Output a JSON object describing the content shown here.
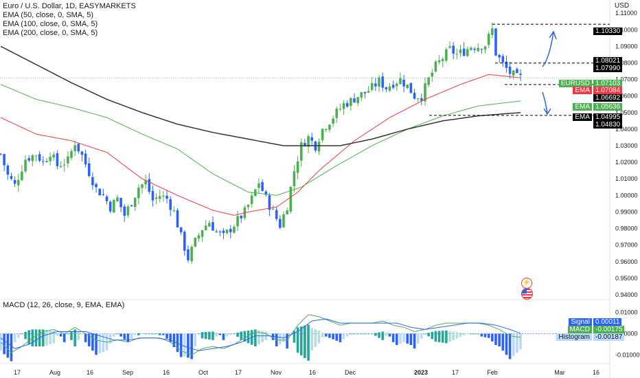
{
  "header": {
    "symbol_line": "Euro / U.S. Dollar, 1D, EASYMARKETS",
    "indicators": [
      "EMA (50, close, 0, SMA, 5)",
      "EMA (100, close, 0, SMA, 5)",
      "EMA (200, close, 0, SMA, 5)"
    ],
    "currency": "USD"
  },
  "macd_panel": {
    "title": "MACD (12, 26, close, 9, EMA, EMA)"
  },
  "price_tags": [
    {
      "label": "",
      "value": "1.10330",
      "bg": "#000000",
      "fg": "#ffffff"
    },
    {
      "label": "",
      "value": "1.08021",
      "bg": "#000000",
      "fg": "#ffffff"
    },
    {
      "label": "",
      "value": "1.07990",
      "bg": "#000000",
      "fg": "#ffffff"
    },
    {
      "label": "EURUSD",
      "value": "1.07103",
      "bg": "#4caf50",
      "fg": "#ffffff"
    },
    {
      "label": "EMA",
      "value": "1.07084",
      "bg": "#f23645",
      "fg": "#ffffff"
    },
    {
      "label": "",
      "value": "1.06692",
      "bg": "#000000",
      "fg": "#ffffff"
    },
    {
      "label": "EMA",
      "value": "1.05636",
      "bg": "#4caf50",
      "fg": "#ffffff"
    },
    {
      "label": "EMA",
      "value": "1.04995",
      "bg": "#000000",
      "fg": "#ffffff"
    },
    {
      "label": "",
      "value": "1.04830",
      "bg": "#000000",
      "fg": "#ffffff"
    }
  ],
  "macd_tags": [
    {
      "label": "Signal",
      "value": "0.00011",
      "bg": "#2962ff",
      "fg": "#ffffff"
    },
    {
      "label": "MACD",
      "value": "-0.00175",
      "bg": "#4caf50",
      "fg": "#ffffff"
    },
    {
      "label": "Histogram",
      "value": "-0.00187",
      "bg": "#bbd9fb",
      "fg": "#131722"
    }
  ],
  "colors": {
    "up": "#4caf50",
    "down": "#2962ff",
    "ema50": "#f23645",
    "ema100": "#4caf50",
    "ema200": "#333333",
    "arrow": "#2962ff",
    "macd_line": "#4caf50",
    "signal_line": "#2962ff"
  },
  "icons": [
    "lightning-icon",
    "us-flag-icon"
  ],
  "chart_data": [
    {
      "type": "candlestick",
      "title": "Euro / U.S. Dollar, 1D, EASYMARKETS",
      "ylabel": "USD",
      "y_ticks": [
        "1.11000",
        "1.10000",
        "1.09000",
        "1.08000",
        "1.07000",
        "1.06000",
        "1.05000",
        "1.04000",
        "1.03000",
        "1.02000",
        "1.01000",
        "1.00000",
        "0.99000",
        "0.98000",
        "0.97000",
        "0.96000",
        "0.95000",
        "0.94000"
      ],
      "x_ticks": [
        "17",
        "Aug",
        "16",
        "Sep",
        "16",
        "Oct",
        "17",
        "Nov",
        "16",
        "Dec",
        "2023",
        "17",
        "Feb",
        "Mar",
        "16"
      ],
      "ylim": [
        0.9375,
        1.1138
      ],
      "price_path": [
        [
          0,
          1.025
        ],
        [
          2,
          1.012
        ],
        [
          4,
          1.006
        ],
        [
          7,
          1.022
        ],
        [
          10,
          1.025
        ],
        [
          12,
          1.02
        ],
        [
          14,
          1.026
        ],
        [
          16,
          1.018
        ],
        [
          19,
          1.021
        ],
        [
          21,
          1.032
        ],
        [
          23,
          1.024
        ],
        [
          25,
          1.014
        ],
        [
          27,
          1.004
        ],
        [
          29,
          1.0
        ],
        [
          31,
          0.993
        ],
        [
          33,
          0.998
        ],
        [
          35,
          0.988
        ],
        [
          37,
          0.996
        ],
        [
          39,
          1.005
        ],
        [
          41,
          1.008
        ],
        [
          43,
          0.997
        ],
        [
          45,
          1.0
        ],
        [
          47,
          0.998
        ],
        [
          49,
          0.99
        ],
        [
          51,
          0.975
        ],
        [
          53,
          0.962
        ],
        [
          55,
          0.972
        ],
        [
          57,
          0.98
        ],
        [
          59,
          0.984
        ],
        [
          61,
          0.978
        ],
        [
          63,
          0.975
        ],
        [
          65,
          0.98
        ],
        [
          67,
          0.985
        ],
        [
          69,
          0.99
        ],
        [
          71,
          0.998
        ],
        [
          73,
          1.008
        ],
        [
          75,
          0.998
        ],
        [
          77,
          0.99
        ],
        [
          79,
          0.982
        ],
        [
          81,
          0.994
        ],
        [
          83,
          1.015
        ],
        [
          85,
          1.03
        ],
        [
          87,
          1.035
        ],
        [
          89,
          1.03
        ],
        [
          91,
          1.04
        ],
        [
          93,
          1.045
        ],
        [
          95,
          1.05
        ],
        [
          97,
          1.055
        ],
        [
          99,
          1.057
        ],
        [
          101,
          1.06
        ],
        [
          103,
          1.062
        ],
        [
          105,
          1.065
        ],
        [
          107,
          1.069
        ],
        [
          109,
          1.065
        ],
        [
          111,
          1.068
        ],
        [
          113,
          1.07
        ],
        [
          115,
          1.066
        ],
        [
          117,
          1.06
        ],
        [
          119,
          1.06
        ],
        [
          121,
          1.07
        ],
        [
          123,
          1.078
        ],
        [
          125,
          1.083
        ],
        [
          127,
          1.088
        ],
        [
          129,
          1.085
        ],
        [
          131,
          1.087
        ],
        [
          133,
          1.09
        ],
        [
          135,
          1.09
        ],
        [
          137,
          1.091
        ],
        [
          139,
          1.1
        ],
        [
          140,
          1.086
        ],
        [
          142,
          1.079
        ],
        [
          144,
          1.074
        ],
        [
          146,
          1.071
        ],
        [
          147,
          1.071
        ]
      ],
      "candles_count": 148,
      "series": [
        {
          "name": "EMA (50, close, 0, SMA, 5)",
          "last": 1.07084,
          "path": [
            [
              0,
              1.047
            ],
            [
              10,
              1.037
            ],
            [
              20,
              1.033
            ],
            [
              30,
              1.026
            ],
            [
              40,
              1.01
            ],
            [
              50,
              1.0
            ],
            [
              60,
              0.991
            ],
            [
              66,
              0.988
            ],
            [
              70,
              0.99
            ],
            [
              78,
              0.993
            ],
            [
              84,
              1.002
            ],
            [
              90,
              1.015
            ],
            [
              100,
              1.033
            ],
            [
              110,
              1.047
            ],
            [
              120,
              1.058
            ],
            [
              130,
              1.067
            ],
            [
              138,
              1.073
            ],
            [
              147,
              1.071
            ]
          ]
        },
        {
          "name": "EMA (100, close, 0, SMA, 5)",
          "last": 1.05636,
          "path": [
            [
              0,
              1.067
            ],
            [
              10,
              1.058
            ],
            [
              20,
              1.053
            ],
            [
              30,
              1.047
            ],
            [
              40,
              1.037
            ],
            [
              50,
              1.028
            ],
            [
              60,
              1.013
            ],
            [
              70,
              1.002
            ],
            [
              78,
              1.0
            ],
            [
              85,
              1.005
            ],
            [
              95,
              1.018
            ],
            [
              105,
              1.03
            ],
            [
              115,
              1.04
            ],
            [
              125,
              1.048
            ],
            [
              135,
              1.054
            ],
            [
              147,
              1.057
            ]
          ]
        },
        {
          "name": "EMA (200, close, 0, SMA, 5)",
          "last": 1.04995,
          "path": [
            [
              0,
              1.09
            ],
            [
              10,
              1.079
            ],
            [
              20,
              1.068
            ],
            [
              30,
              1.058
            ],
            [
              40,
              1.05
            ],
            [
              50,
              1.043
            ],
            [
              60,
              1.038
            ],
            [
              70,
              1.034
            ],
            [
              80,
              1.03
            ],
            [
              88,
              1.03
            ],
            [
              96,
              1.03
            ],
            [
              105,
              1.034
            ],
            [
              115,
              1.04
            ],
            [
              125,
              1.045
            ],
            [
              135,
              1.048
            ],
            [
              147,
              1.05
            ]
          ]
        }
      ],
      "levels": [
        1.1033,
        1.0799,
        1.0669,
        1.0483
      ]
    },
    {
      "type": "line",
      "title": "MACD (12, 26, close, 9, EMA, EMA)",
      "y_ticks": [
        "0.01000",
        "0.00000",
        "-0.01000"
      ],
      "ylim": [
        -0.0128,
        0.0125
      ],
      "series": [
        {
          "name": "MACD",
          "last": -0.00175,
          "path": [
            [
              0,
              -0.004
            ],
            [
              3,
              -0.009
            ],
            [
              6,
              -0.006
            ],
            [
              9,
              -0.002
            ],
            [
              12,
              0.001
            ],
            [
              15,
              0.002
            ],
            [
              18,
              0.0
            ],
            [
              21,
              0.003
            ],
            [
              24,
              0.0
            ],
            [
              27,
              -0.003
            ],
            [
              30,
              -0.004
            ],
            [
              33,
              -0.003
            ],
            [
              36,
              -0.004
            ],
            [
              39,
              -0.002
            ],
            [
              42,
              -0.002
            ],
            [
              45,
              -0.002
            ],
            [
              48,
              -0.004
            ],
            [
              51,
              -0.008
            ],
            [
              54,
              -0.01
            ],
            [
              57,
              -0.007
            ],
            [
              60,
              -0.006
            ],
            [
              63,
              -0.007
            ],
            [
              66,
              -0.005
            ],
            [
              69,
              -0.002
            ],
            [
              72,
              0.001
            ],
            [
              75,
              0.0
            ],
            [
              78,
              -0.003
            ],
            [
              81,
              -0.003
            ],
            [
              84,
              0.004
            ],
            [
              87,
              0.009
            ],
            [
              90,
              0.008
            ],
            [
              93,
              0.006
            ],
            [
              96,
              0.004
            ],
            [
              99,
              0.005
            ],
            [
              102,
              0.005
            ],
            [
              105,
              0.005
            ],
            [
              108,
              0.006
            ],
            [
              111,
              0.004
            ],
            [
              114,
              0.003
            ],
            [
              117,
              0.001
            ],
            [
              120,
              0.002
            ],
            [
              123,
              0.004
            ],
            [
              126,
              0.005
            ],
            [
              129,
              0.005
            ],
            [
              132,
              0.005
            ],
            [
              135,
              0.005
            ],
            [
              138,
              0.004
            ],
            [
              141,
              0.002
            ],
            [
              144,
              -0.001
            ],
            [
              147,
              -0.00175
            ]
          ]
        },
        {
          "name": "Signal",
          "last": 0.00011,
          "path": [
            [
              0,
              -0.002
            ],
            [
              4,
              -0.007
            ],
            [
              8,
              -0.005
            ],
            [
              12,
              -0.001
            ],
            [
              16,
              0.001
            ],
            [
              20,
              0.001
            ],
            [
              24,
              0.001
            ],
            [
              28,
              -0.001
            ],
            [
              32,
              -0.003
            ],
            [
              36,
              -0.003
            ],
            [
              40,
              -0.002
            ],
            [
              44,
              -0.002
            ],
            [
              48,
              -0.003
            ],
            [
              52,
              -0.006
            ],
            [
              56,
              -0.008
            ],
            [
              60,
              -0.007
            ],
            [
              64,
              -0.006
            ],
            [
              68,
              -0.004
            ],
            [
              72,
              -0.001
            ],
            [
              76,
              -0.001
            ],
            [
              80,
              -0.002
            ],
            [
              84,
              0.001
            ],
            [
              88,
              0.006
            ],
            [
              92,
              0.007
            ],
            [
              96,
              0.005
            ],
            [
              100,
              0.005
            ],
            [
              104,
              0.005
            ],
            [
              108,
              0.005
            ],
            [
              112,
              0.005
            ],
            [
              116,
              0.003
            ],
            [
              120,
              0.002
            ],
            [
              124,
              0.003
            ],
            [
              128,
              0.004
            ],
            [
              132,
              0.005
            ],
            [
              136,
              0.005
            ],
            [
              140,
              0.004
            ],
            [
              144,
              0.002
            ],
            [
              147,
              0.00011
            ]
          ]
        },
        {
          "name": "Histogram",
          "last": -0.00187
        }
      ]
    }
  ]
}
